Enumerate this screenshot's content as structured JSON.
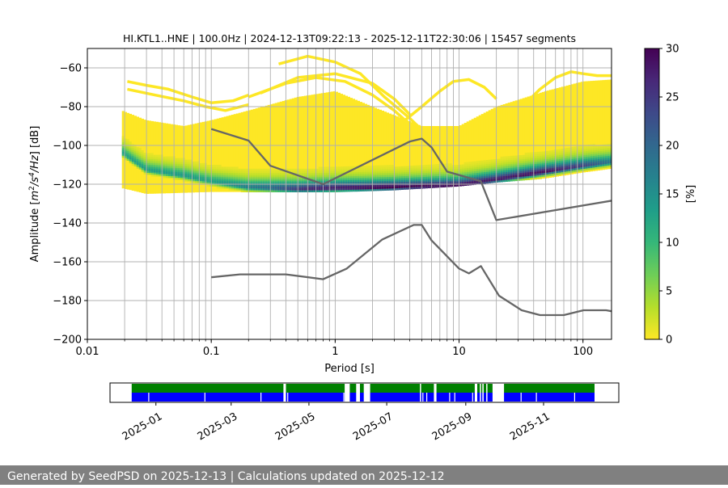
{
  "chart_data": [
    {
      "type": "heatmap",
      "title": "HI.KTL1..HNE | 100.0Hz | 2024-12-13T09:22:13 - 2025-12-11T22:30:06 | 15457 segments",
      "xlabel": "Period [s]",
      "ylabel_parts": [
        "Amplitude [",
        "m",
        "2",
        "/s",
        "4",
        "/Hz",
        "] [dB]"
      ],
      "x_scale": "log",
      "xlim": [
        0.01,
        170
      ],
      "ylim": [
        -200,
        -50
      ],
      "x_ticks": [
        {
          "value": 0.01,
          "label": "0.01"
        },
        {
          "value": 0.1,
          "label": "0.1"
        },
        {
          "value": 1,
          "label": "1"
        },
        {
          "value": 10,
          "label": "10"
        },
        {
          "value": 100,
          "label": "100"
        }
      ],
      "y_ticks": [
        {
          "value": -60,
          "label": "−60"
        },
        {
          "value": -80,
          "label": "−80"
        },
        {
          "value": -100,
          "label": "−100"
        },
        {
          "value": -120,
          "label": "−120"
        },
        {
          "value": -140,
          "label": "−140"
        },
        {
          "value": -160,
          "label": "−160"
        },
        {
          "value": -180,
          "label": "−180"
        },
        {
          "value": -200,
          "label": "−200"
        }
      ],
      "grid": true,
      "vertical_grid_periods": [
        0.02,
        0.03,
        0.04,
        0.05,
        0.06,
        0.07,
        0.08,
        0.09,
        0.1,
        0.2,
        0.3,
        0.4,
        0.5,
        0.6,
        0.7,
        0.8,
        0.9,
        1,
        2,
        3,
        4,
        5,
        6,
        7,
        8,
        9,
        10,
        20,
        30,
        40,
        50,
        60,
        70,
        80,
        90,
        100
      ],
      "colorbar": {
        "label": "[%]",
        "range": [
          0,
          30
        ],
        "ticks": [
          {
            "value": 0,
            "label": "0"
          },
          {
            "value": 5,
            "label": "5"
          },
          {
            "value": 10,
            "label": "10"
          },
          {
            "value": 15,
            "label": "15"
          },
          {
            "value": 20,
            "label": "20"
          },
          {
            "value": 25,
            "label": "25"
          },
          {
            "value": 30,
            "label": "30"
          }
        ],
        "colormap": [
          "#fde725",
          "#b5de2b",
          "#6ece58",
          "#35b779",
          "#1f9e89",
          "#26828e",
          "#31688e",
          "#3e4989",
          "#482878",
          "#440154"
        ]
      },
      "density": {
        "period_start": 0.019,
        "period_end": 170,
        "lower_edge_db": [
          [
            0.019,
            -122
          ],
          [
            0.03,
            -125
          ],
          [
            0.1,
            -124
          ],
          [
            1,
            -124
          ],
          [
            3,
            -123
          ],
          [
            10,
            -121
          ],
          [
            20,
            -119
          ],
          [
            50,
            -117
          ],
          [
            100,
            -114
          ],
          [
            170,
            -112
          ]
        ],
        "upper_edge_db": [
          [
            0.019,
            -82
          ],
          [
            0.03,
            -87
          ],
          [
            0.06,
            -90
          ],
          [
            0.1,
            -87
          ],
          [
            0.2,
            -82
          ],
          [
            0.5,
            -75
          ],
          [
            1,
            -72
          ],
          [
            2,
            -80
          ],
          [
            5,
            -90
          ],
          [
            10,
            -90
          ],
          [
            20,
            -80
          ],
          [
            50,
            -72
          ],
          [
            100,
            -67
          ],
          [
            170,
            -66
          ]
        ],
        "mode_db": [
          [
            0.019,
            -104
          ],
          [
            0.03,
            -113
          ],
          [
            0.06,
            -116
          ],
          [
            0.1,
            -119
          ],
          [
            0.2,
            -122
          ],
          [
            0.5,
            -123
          ],
          [
            1,
            -122.5
          ],
          [
            3,
            -122
          ],
          [
            10,
            -121
          ],
          [
            20,
            -118
          ],
          [
            50,
            -114
          ],
          [
            100,
            -111
          ],
          [
            170,
            -109
          ]
        ],
        "mode_peak_percent": [
          [
            0.019,
            13
          ],
          [
            0.06,
            14
          ],
          [
            0.1,
            13
          ],
          [
            0.3,
            20
          ],
          [
            0.6,
            27
          ],
          [
            1,
            28
          ],
          [
            3,
            30
          ],
          [
            10,
            29
          ],
          [
            20,
            28
          ],
          [
            50,
            29
          ],
          [
            100,
            24
          ],
          [
            170,
            18
          ]
        ],
        "sparse_arcs_db": [
          [
            [
              0.35,
              -58
            ],
            [
              0.6,
              -54
            ],
            [
              1.0,
              -57
            ],
            [
              1.6,
              -63
            ],
            [
              2.5,
              -75
            ],
            [
              4,
              -86
            ],
            [
              5,
              -92
            ]
          ],
          [
            [
              0.2,
              -75
            ],
            [
              0.4,
              -68
            ],
            [
              0.7,
              -65
            ],
            [
              1.2,
              -67
            ],
            [
              2,
              -74
            ],
            [
              3,
              -82
            ],
            [
              4.5,
              -92
            ]
          ],
          [
            [
              0.25,
              -73
            ],
            [
              0.5,
              -65
            ],
            [
              1,
              -63
            ],
            [
              2,
              -68
            ],
            [
              3,
              -76
            ],
            [
              4,
              -84
            ]
          ],
          [
            [
              3.5,
              -88
            ],
            [
              5,
              -80
            ],
            [
              7,
              -72
            ],
            [
              9,
              -67
            ],
            [
              12,
              -66
            ],
            [
              16,
              -70
            ],
            [
              20,
              -76
            ]
          ],
          [
            [
              0.021,
              -67
            ],
            [
              0.03,
              -69
            ],
            [
              0.045,
              -71
            ],
            [
              0.07,
              -75
            ],
            [
              0.1,
              -78
            ],
            [
              0.15,
              -77
            ],
            [
              0.2,
              -74
            ]
          ],
          [
            [
              0.021,
              -71
            ],
            [
              0.035,
              -74
            ],
            [
              0.06,
              -77
            ],
            [
              0.09,
              -80
            ],
            [
              0.13,
              -82
            ],
            [
              0.2,
              -79
            ]
          ],
          [
            [
              30,
              -82
            ],
            [
              45,
              -71
            ],
            [
              60,
              -65
            ],
            [
              80,
              -62
            ],
            [
              100,
              -63
            ],
            [
              130,
              -64
            ],
            [
              170,
              -64
            ]
          ]
        ]
      },
      "series": [
        {
          "color": "#666666",
          "x": [
            0.1,
            0.2,
            0.3,
            0.8,
            4,
            5,
            6,
            8,
            15,
            20,
            170
          ],
          "y": [
            -91.5,
            -97.5,
            -110.5,
            -120,
            -98,
            -96.5,
            -101,
            -113.5,
            -118.5,
            -138.5,
            -128.5
          ]
        },
        {
          "color": "#666666",
          "x": [
            0.1,
            0.17,
            0.4,
            0.8,
            1.24,
            2.4,
            4.3,
            5,
            6,
            10,
            12,
            15,
            21,
            32,
            45,
            70,
            101,
            154,
            170
          ],
          "y": [
            -168,
            -166.5,
            -166.5,
            -169,
            -163.5,
            -148.5,
            -141,
            -141,
            -149,
            -163.5,
            -166,
            -162.2,
            -177.5,
            -185,
            -187.5,
            -187.5,
            -185,
            -185,
            -185.5
          ]
        }
      ]
    },
    {
      "type": "timeline",
      "x_ticks": [
        "2025-01",
        "2025-03",
        "2025-05",
        "2025-07",
        "2025-09",
        "2025-11"
      ],
      "colors": {
        "green": "#008000",
        "blue": "#0000ff"
      },
      "coverage_ranges": [
        [
          "2024-12-13",
          "2025-04-11"
        ],
        [
          "2025-04-12",
          "2025-05-29"
        ],
        [
          "2025-06-02",
          "2025-06-07"
        ],
        [
          "2025-06-10",
          "2025-06-13"
        ],
        [
          "2025-06-18",
          "2025-08-07"
        ],
        [
          "2025-08-09",
          "2025-09-08"
        ],
        [
          "2025-09-10",
          "2025-09-14"
        ],
        [
          "2025-09-15",
          "2025-09-17"
        ],
        [
          "2025-09-18",
          "2025-09-22"
        ],
        [
          "2025-10-01",
          "2025-12-11"
        ]
      ],
      "green_gaps": [
        "2025-04-12",
        "2025-07-27",
        "2025-09-12"
      ],
      "blue_gaps": [
        "2024-12-26",
        "2025-02-08",
        "2025-03-24",
        "2025-04-14",
        "2025-05-28",
        "2025-07-29",
        "2025-08-01",
        "2025-08-19",
        "2025-08-23",
        "2025-09-06",
        "2025-10-14",
        "2025-10-26",
        "2025-11-25"
      ]
    }
  ],
  "footer": {
    "text": "Generated by SeedPSD on 2025-12-13 | Calculations updated on 2025-12-12"
  }
}
